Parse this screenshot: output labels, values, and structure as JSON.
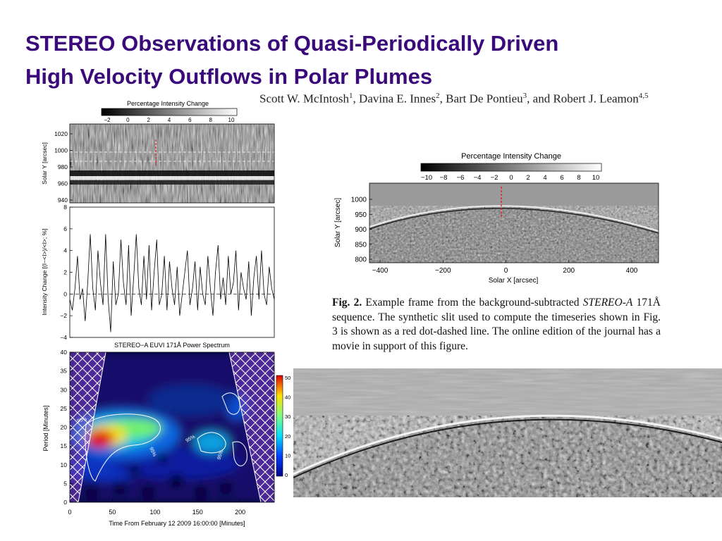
{
  "title_line1": "STEREO Observations of Quasi-Periodically Driven",
  "title_line2": "High Velocity Outflows in Polar Plumes",
  "authors": {
    "a1": "Scott W. McIntosh",
    "s1": "1",
    "a2": "Davina E. Innes",
    "s2": "2",
    "a3": "Bart De Pontieu",
    "s3": "3",
    "a4": "and Robert J. Leamon",
    "s4": "4,5"
  },
  "left_figure": {
    "colorbar_title": "Percentage Intensity Change",
    "colorbar_ticks": [
      "−2",
      "0",
      "2",
      "4",
      "6",
      "8",
      "10"
    ],
    "panel1_ylabel": "Solar Y [arcsec]",
    "panel1_yticks": [
      "1020",
      "1000",
      "980",
      "960",
      "940"
    ],
    "panel2_ylabel": "Intensity Change [(I−<I>)/<I>; %]",
    "panel3_title": "STEREO−A EUVI 171Å Power Spectrum",
    "panel3_ylabel": "Period    [Minutes]",
    "panel3_xlabel": "Time From February 12 2009 16:00:00 [Minutes]",
    "contour_label": "95%",
    "power_colorbar_ticks": [
      "50",
      "40",
      "30",
      "20",
      "10",
      "0"
    ]
  },
  "right_figure": {
    "colorbar_title": "Percentage Intensity Change",
    "colorbar_ticks": [
      "−10",
      "−8",
      "−6",
      "−4",
      "−2",
      "0",
      "2",
      "4",
      "6",
      "8",
      "10"
    ],
    "ylabel": "Solar Y [arcsec]",
    "yticks": [
      "1000",
      "950",
      "900",
      "850",
      "800"
    ],
    "xlabel": "Solar X [arcsec]",
    "xticks": [
      "−400",
      "−200",
      "0",
      "200",
      "400"
    ]
  },
  "caption": {
    "label": "Fig. 2.",
    "text1": " Example frame from the background-subtracted ",
    "italic": "STEREO-A",
    "text2": " 171Å sequence. The synthetic slit used to compute the timeseries shown in Fig. 3 is shown as a red dot-dashed line. The online edition of the journal has a movie in support of this figure."
  },
  "chart_data": [
    {
      "type": "line",
      "ylabel": "Intensity Change [(I−<I>)/<I>; %]",
      "ylim": [
        -4,
        8
      ],
      "yticks": [
        -4,
        -2,
        0,
        2,
        4,
        6,
        8
      ],
      "x": [
        0,
        3,
        6,
        9,
        12,
        15,
        18,
        21,
        24,
        27,
        30,
        33,
        36,
        39,
        42,
        45,
        48,
        51,
        54,
        57,
        60,
        63,
        66,
        69,
        72,
        75,
        78,
        81,
        84,
        87,
        90,
        93,
        96,
        99,
        102,
        105,
        108,
        111,
        114,
        117,
        120,
        123,
        126,
        129,
        132,
        135,
        138,
        141,
        144,
        147,
        150,
        153,
        156,
        159,
        162,
        165,
        168,
        171,
        174,
        177,
        180,
        183,
        186,
        189,
        192,
        195,
        198,
        201,
        204,
        207,
        210,
        213,
        216,
        219,
        222,
        225,
        228,
        231,
        234,
        237,
        240
      ],
      "y": [
        -0.5,
        -1.5,
        0.5,
        3.5,
        -0.5,
        0.5,
        -2.5,
        1,
        5.5,
        0.5,
        -1.5,
        4,
        1,
        -1,
        5.5,
        -0.5,
        -3.5,
        3,
        -1,
        0,
        5,
        1,
        -1,
        4.5,
        -2,
        1.5,
        5.5,
        0.5,
        -1,
        3.5,
        -0.5,
        4.5,
        -1.5,
        2,
        5,
        -1,
        0,
        3.5,
        -1.5,
        3,
        0.5,
        -1,
        2.5,
        -2,
        0,
        2,
        4,
        -1,
        0.5,
        3,
        -1.5,
        2.5,
        0,
        -1,
        3.5,
        0.5,
        -2,
        2,
        4.5,
        -0.5,
        1.5,
        -1,
        3.5,
        0,
        1,
        4,
        -1.5,
        2,
        0.5,
        -0.5,
        3,
        -2,
        1.5,
        3.5,
        -0.5,
        4,
        0,
        -1,
        2.5,
        0.5,
        -0.5
      ],
      "zero_line": true
    },
    {
      "type": "heatmap",
      "title": "STEREO−A EUVI 171Å Power Spectrum",
      "xlabel": "Time From February 12 2009 16:00:00 [Minutes]",
      "ylabel": "Period    [Minutes]",
      "xlim": [
        0,
        240
      ],
      "ylim": [
        0,
        40
      ],
      "xticks": [
        0,
        50,
        100,
        150,
        200
      ],
      "yticks": [
        0,
        5,
        10,
        15,
        20,
        25,
        30,
        35,
        40
      ],
      "colorbar_range": [
        0,
        50
      ],
      "contour_labels": [
        "95%",
        "95%",
        "95%",
        "95%"
      ]
    }
  ]
}
